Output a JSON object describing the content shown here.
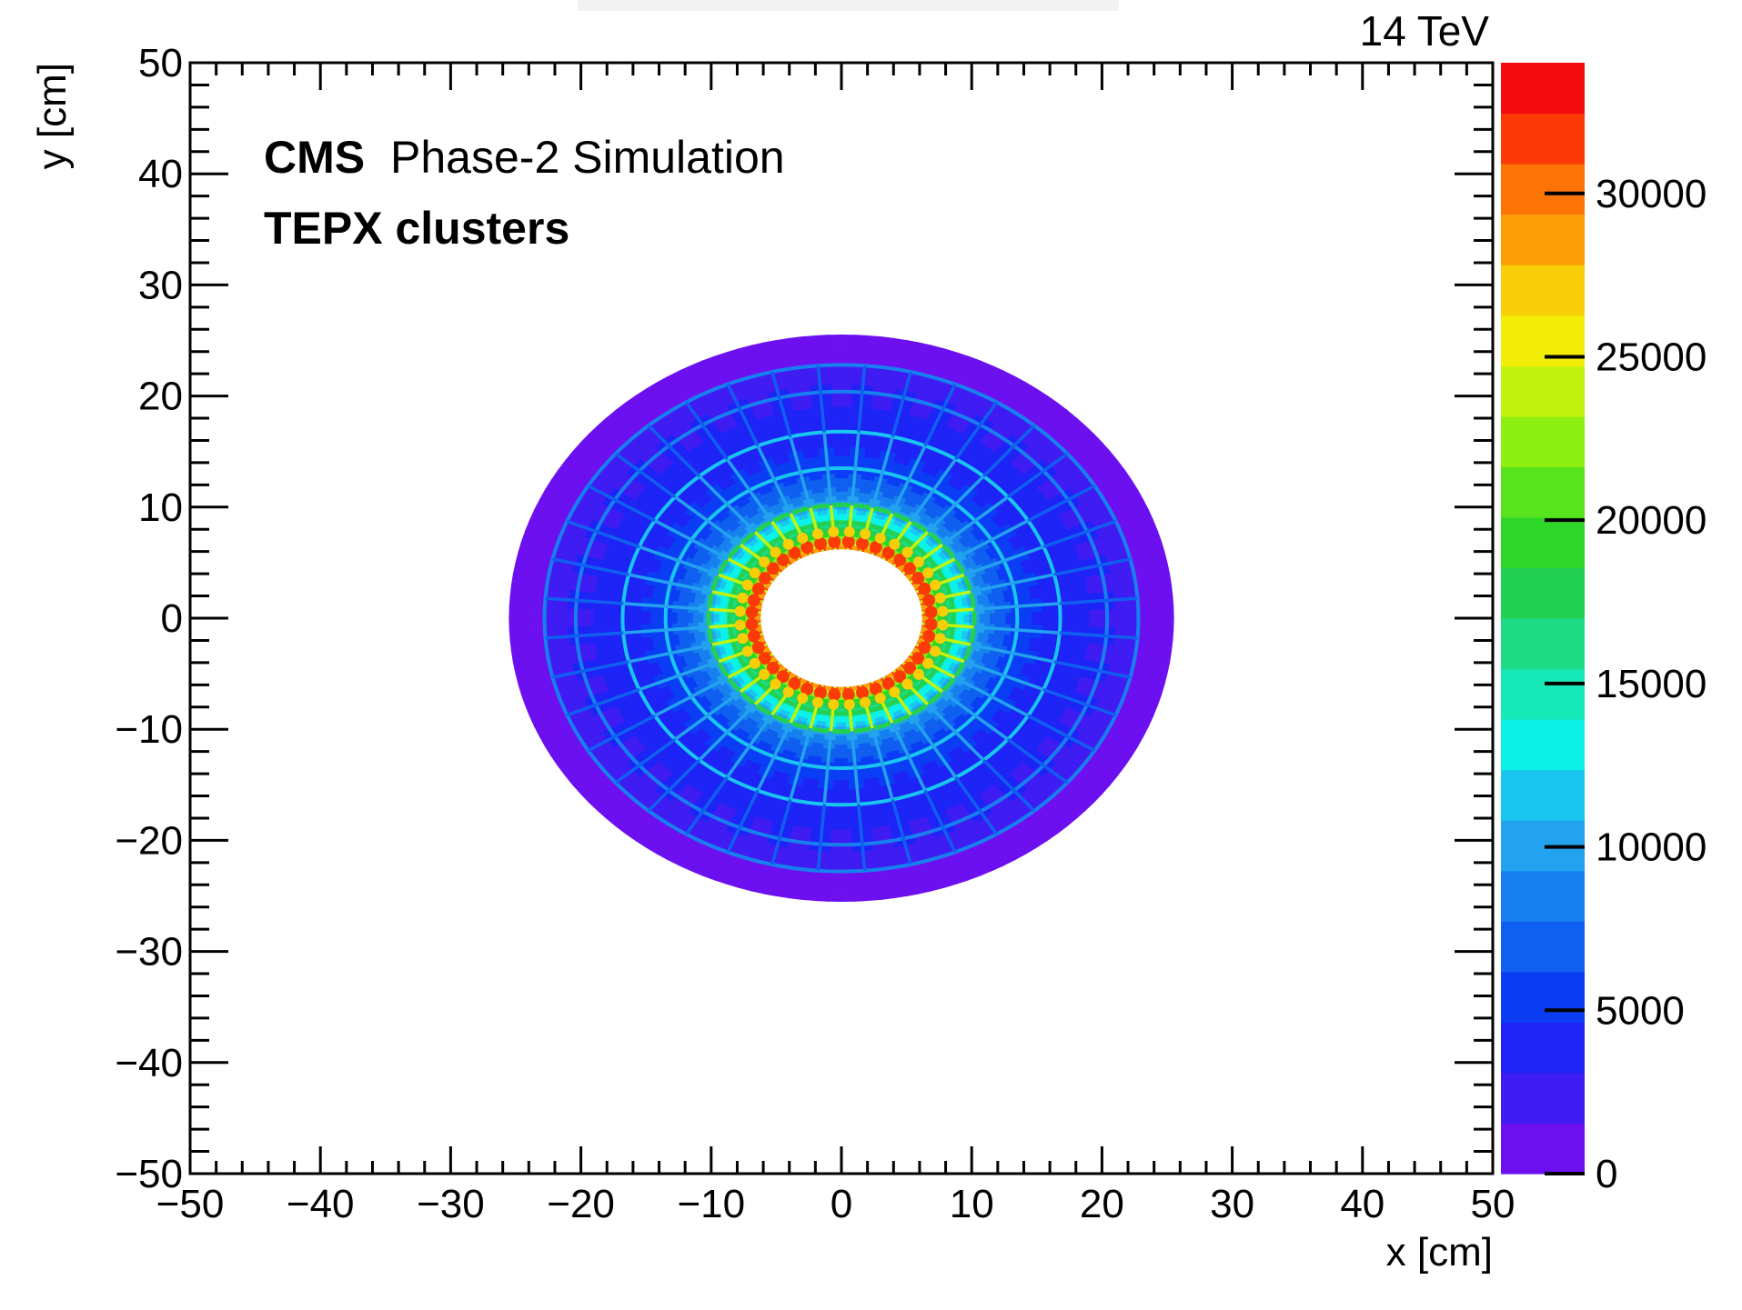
{
  "chart_data": {
    "type": "heatmap",
    "energy_label": "14 TeV",
    "experiment": "CMS",
    "experiment_sub": "Phase-2 Simulation",
    "selection": "TEPX clusters",
    "xlabel": "x [cm]",
    "ylabel": "y [cm]",
    "xlim": [
      -50,
      50
    ],
    "ylim": [
      -50,
      50
    ],
    "x_ticks": [
      -50,
      -40,
      -30,
      -20,
      -10,
      0,
      10,
      20,
      30,
      40,
      50
    ],
    "y_ticks": [
      -50,
      -40,
      -30,
      -20,
      -10,
      0,
      10,
      20,
      30,
      40,
      50
    ],
    "x_tick_labels": [
      "−50",
      "−40",
      "−30",
      "−20",
      "−10",
      "0",
      "10",
      "20",
      "30",
      "40",
      "50"
    ],
    "y_tick_labels": [
      "−50",
      "−40",
      "−30",
      "−20",
      "−10",
      "0",
      "10",
      "20",
      "30",
      "40",
      "50"
    ],
    "colorbar": {
      "zlim": [
        0,
        34000
      ],
      "ticks": [
        0,
        5000,
        10000,
        15000,
        20000,
        25000,
        30000
      ],
      "tick_labels": [
        "0",
        "5000",
        "10000",
        "15000",
        "20000",
        "25000",
        "30000"
      ],
      "palette": [
        "#6c10f0",
        "#3f1cf2",
        "#1d24f5",
        "#0b3ef4",
        "#0f5ff0",
        "#1780ef",
        "#22a2ef",
        "#19c6f0",
        "#0cf2e8",
        "#16e8b8",
        "#1edc86",
        "#22d052",
        "#2ed62a",
        "#58e41c",
        "#8ef012",
        "#c2f20e",
        "#f2ee08",
        "#f8ce08",
        "#fc9e06",
        "#fd7406",
        "#fb3a08",
        "#f40c10"
      ]
    },
    "distribution": {
      "shape": "annulus",
      "inner_radius_cm": 6.2,
      "outer_radius_cm": 25.5,
      "ring_radii_cm": [
        8.6,
        10.2,
        13.5,
        16.8,
        20.4,
        22.8
      ],
      "spokes": 40,
      "value_at_inner_edge": 32000,
      "background_value": 2000
    }
  }
}
